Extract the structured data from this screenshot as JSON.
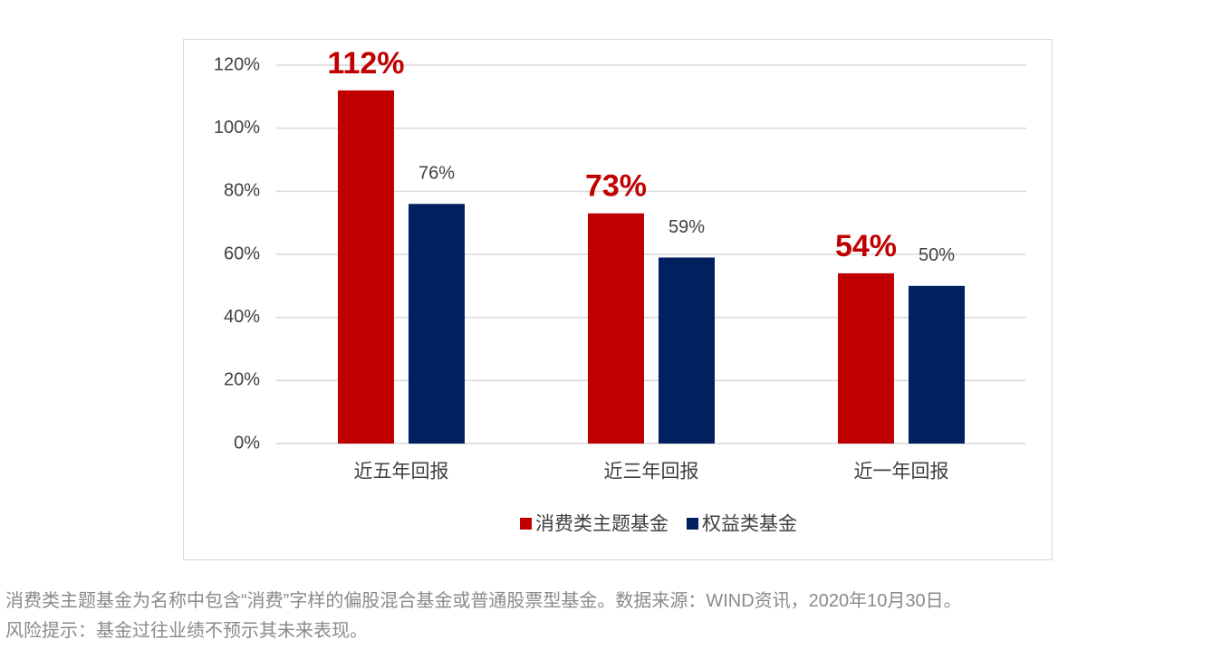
{
  "chart_data": {
    "type": "bar",
    "categories": [
      "近五年回报",
      "近三年回报",
      "近一年回报"
    ],
    "series": [
      {
        "name": "消费类主题基金",
        "color": "#c00000",
        "values": [
          112,
          73,
          54
        ],
        "value_labels": [
          "112%",
          "73%",
          "54%"
        ]
      },
      {
        "name": "权益类基金",
        "color": "#002060",
        "values": [
          76,
          59,
          50
        ],
        "value_labels": [
          "76%",
          "59%",
          "50%"
        ]
      }
    ],
    "ylim": [
      0,
      120
    ],
    "yticks": [
      {
        "value": 0,
        "label": "0%"
      },
      {
        "value": 20,
        "label": "20%"
      },
      {
        "value": 40,
        "label": "40%"
      },
      {
        "value": 60,
        "label": "60%"
      },
      {
        "value": 80,
        "label": "80%"
      },
      {
        "value": 100,
        "label": "100%"
      },
      {
        "value": 120,
        "label": "120%"
      }
    ],
    "grid": true,
    "legend": "bottom"
  },
  "notes": [
    "消费类主题基金为名称中包含“消费”字样的偏股混合基金或普通股票型基金。数据来源：WIND资讯，2020年10月30日。",
    "风险提示：基金过往业绩不预示其未来表现。"
  ]
}
